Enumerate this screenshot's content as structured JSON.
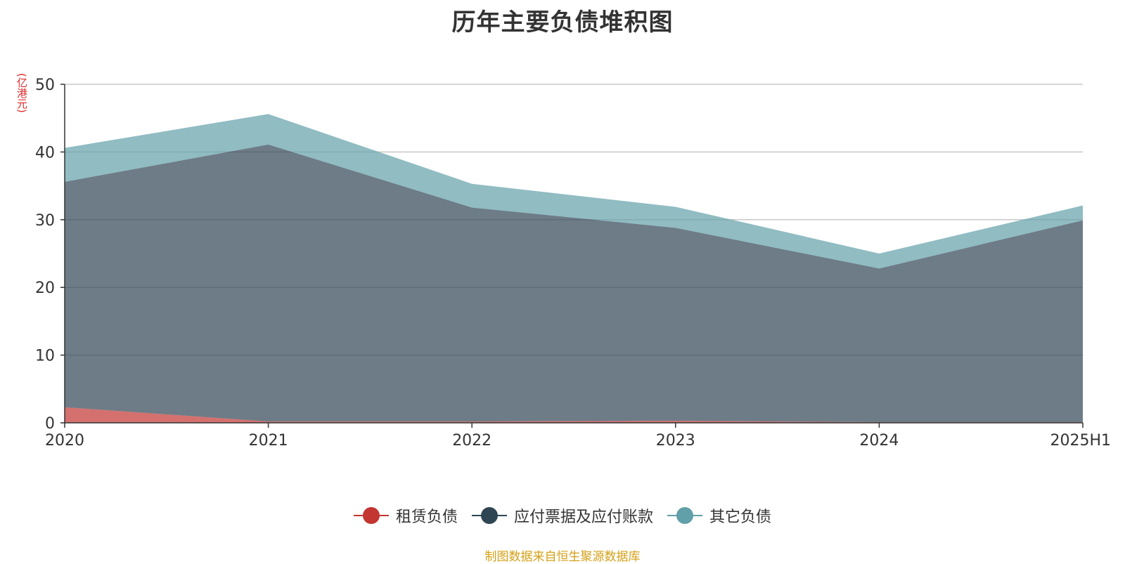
{
  "chart_data": {
    "type": "area",
    "stacked": true,
    "title": "历年主要负债堆积图",
    "unit": "(亿港元)",
    "categories": [
      "2020",
      "2021",
      "2022",
      "2023",
      "2024",
      "2025H1"
    ],
    "ylim": [
      0,
      50
    ],
    "yticks": [
      0,
      10,
      20,
      30,
      40,
      50
    ],
    "grid": true,
    "legend_position": "bottom",
    "series": [
      {
        "name": "租赁负债",
        "color": "#c23531",
        "values": [
          2.3,
          0.2,
          0.2,
          0.3,
          0.1,
          0.1
        ]
      },
      {
        "name": "应付票据及应付账款",
        "color": "#2f4554",
        "values": [
          33.3,
          40.9,
          31.6,
          28.5,
          22.7,
          29.8
        ]
      },
      {
        "name": "其它负债",
        "color": "#61a0a8",
        "values": [
          5.0,
          4.5,
          3.5,
          3.1,
          2.2,
          2.2
        ]
      }
    ],
    "source": "制图数据来自恒生聚源数据库"
  }
}
